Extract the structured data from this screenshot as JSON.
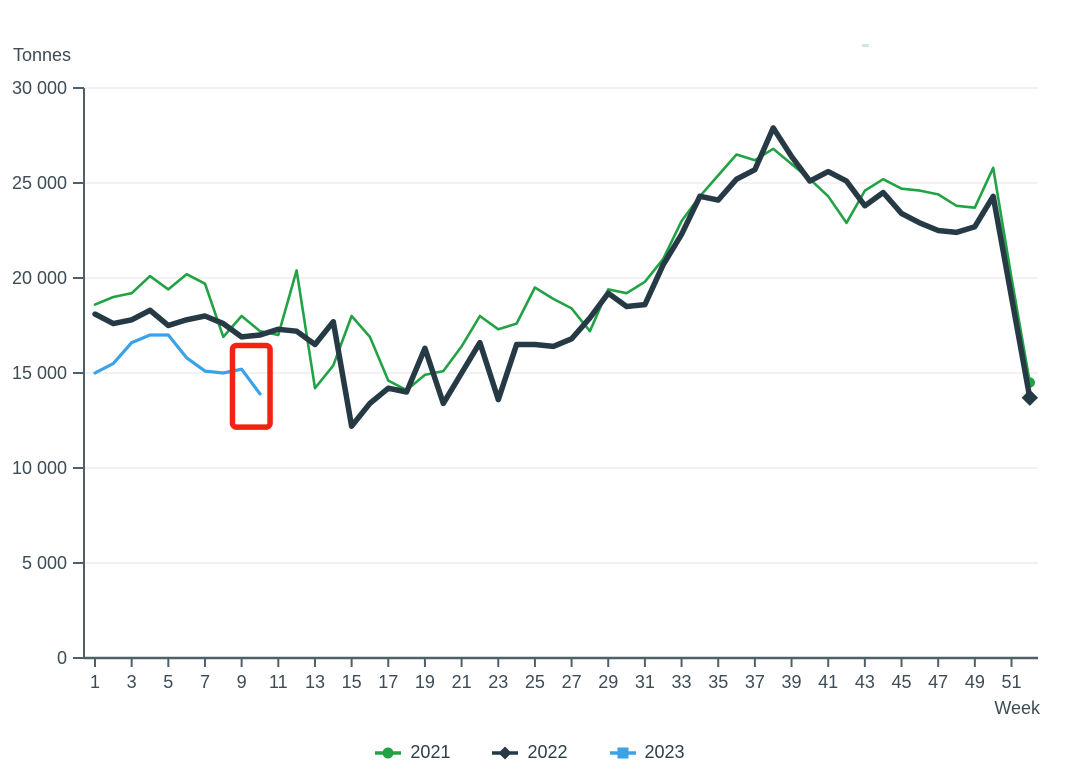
{
  "chart_data": {
    "type": "line",
    "title": "",
    "ylabel": "Tonnes",
    "xlabel": "Week",
    "ylim": [
      0,
      30000
    ],
    "xlim": [
      1,
      52
    ],
    "grid": "horizontal",
    "y_ticks": [
      0,
      5000,
      10000,
      15000,
      20000,
      25000,
      30000
    ],
    "y_tick_labels": [
      "0",
      "5 000",
      "10 000",
      "15 000",
      "20 000",
      "25 000",
      "30 000"
    ],
    "x_ticks": [
      1,
      3,
      5,
      7,
      9,
      11,
      13,
      15,
      17,
      19,
      21,
      23,
      25,
      27,
      29,
      31,
      33,
      35,
      37,
      39,
      41,
      43,
      45,
      47,
      49,
      51
    ],
    "x_tick_labels": [
      "1",
      "3",
      "5",
      "7",
      "9",
      "11",
      "13",
      "15",
      "17",
      "19",
      "21",
      "23",
      "25",
      "27",
      "29",
      "31",
      "33",
      "35",
      "37",
      "39",
      "41",
      "43",
      "45",
      "47",
      "49",
      "51"
    ],
    "legend_position": "bottom-center",
    "series": [
      {
        "name": "2021",
        "color": "#23a245",
        "marker": "circle",
        "line_width": 2.6,
        "end_marker_only": true,
        "weeks": [
          1,
          2,
          3,
          4,
          5,
          6,
          7,
          8,
          9,
          10,
          11,
          12,
          13,
          14,
          15,
          16,
          17,
          18,
          19,
          20,
          21,
          22,
          23,
          24,
          25,
          26,
          27,
          28,
          29,
          30,
          31,
          32,
          33,
          34,
          35,
          36,
          37,
          38,
          39,
          40,
          41,
          42,
          43,
          44,
          45,
          46,
          47,
          48,
          49,
          50,
          51,
          52
        ],
        "values": [
          18600,
          19000,
          19200,
          20100,
          19400,
          20200,
          19700,
          16900,
          18000,
          17200,
          17000,
          20400,
          14200,
          15400,
          18000,
          16900,
          14600,
          14100,
          14900,
          15100,
          16400,
          18000,
          17300,
          17600,
          19500,
          18900,
          18400,
          17200,
          19400,
          19200,
          19800,
          21000,
          23000,
          24300,
          25400,
          26500,
          26200,
          26800,
          26000,
          25200,
          24300,
          22900,
          24600,
          25200,
          24700,
          24600,
          24400,
          23800,
          23700,
          25800,
          20000,
          14500
        ]
      },
      {
        "name": "2022",
        "color": "#263a45",
        "marker": "diamond",
        "line_width": 5.5,
        "end_marker_only": true,
        "weeks": [
          1,
          2,
          3,
          4,
          5,
          6,
          7,
          8,
          9,
          10,
          11,
          12,
          13,
          14,
          15,
          16,
          17,
          18,
          19,
          20,
          21,
          22,
          23,
          24,
          25,
          26,
          27,
          28,
          29,
          30,
          31,
          32,
          33,
          34,
          35,
          36,
          37,
          38,
          39,
          40,
          41,
          42,
          43,
          44,
          45,
          46,
          47,
          48,
          49,
          50,
          51,
          52
        ],
        "values": [
          18100,
          17600,
          17800,
          18300,
          17500,
          17800,
          18000,
          17600,
          16900,
          17000,
          17300,
          17200,
          16500,
          17700,
          12200,
          13400,
          14200,
          14000,
          16300,
          13400,
          15000,
          16600,
          13600,
          16500,
          16500,
          16400,
          16800,
          17900,
          19200,
          18500,
          18600,
          20700,
          22300,
          24300,
          24100,
          25200,
          25700,
          27900,
          26400,
          25100,
          25600,
          25100,
          23800,
          24500,
          23400,
          22900,
          22500,
          22400,
          22700,
          24300,
          19000,
          13700
        ]
      },
      {
        "name": "2023",
        "color": "#3aa3e8",
        "marker": "square",
        "line_width": 3.2,
        "end_marker_only": false,
        "weeks": [
          1,
          2,
          3,
          4,
          5,
          6,
          7,
          8,
          9,
          10
        ],
        "values": [
          15000,
          15500,
          16600,
          17000,
          17000,
          15800,
          15100,
          15000,
          15200,
          13900
        ]
      }
    ],
    "annotation": {
      "type": "rectangle",
      "color": "#f22312",
      "week_start": 8.5,
      "week_end": 10.55,
      "value_low": 12150,
      "value_high": 16450,
      "purpose": "highlight weeks 9-10 of 2023"
    },
    "colors": {
      "axis": "#50606a",
      "gridline": "#e9eaea",
      "tick_label": "#3d4c55",
      "background": "#ffffff"
    }
  }
}
